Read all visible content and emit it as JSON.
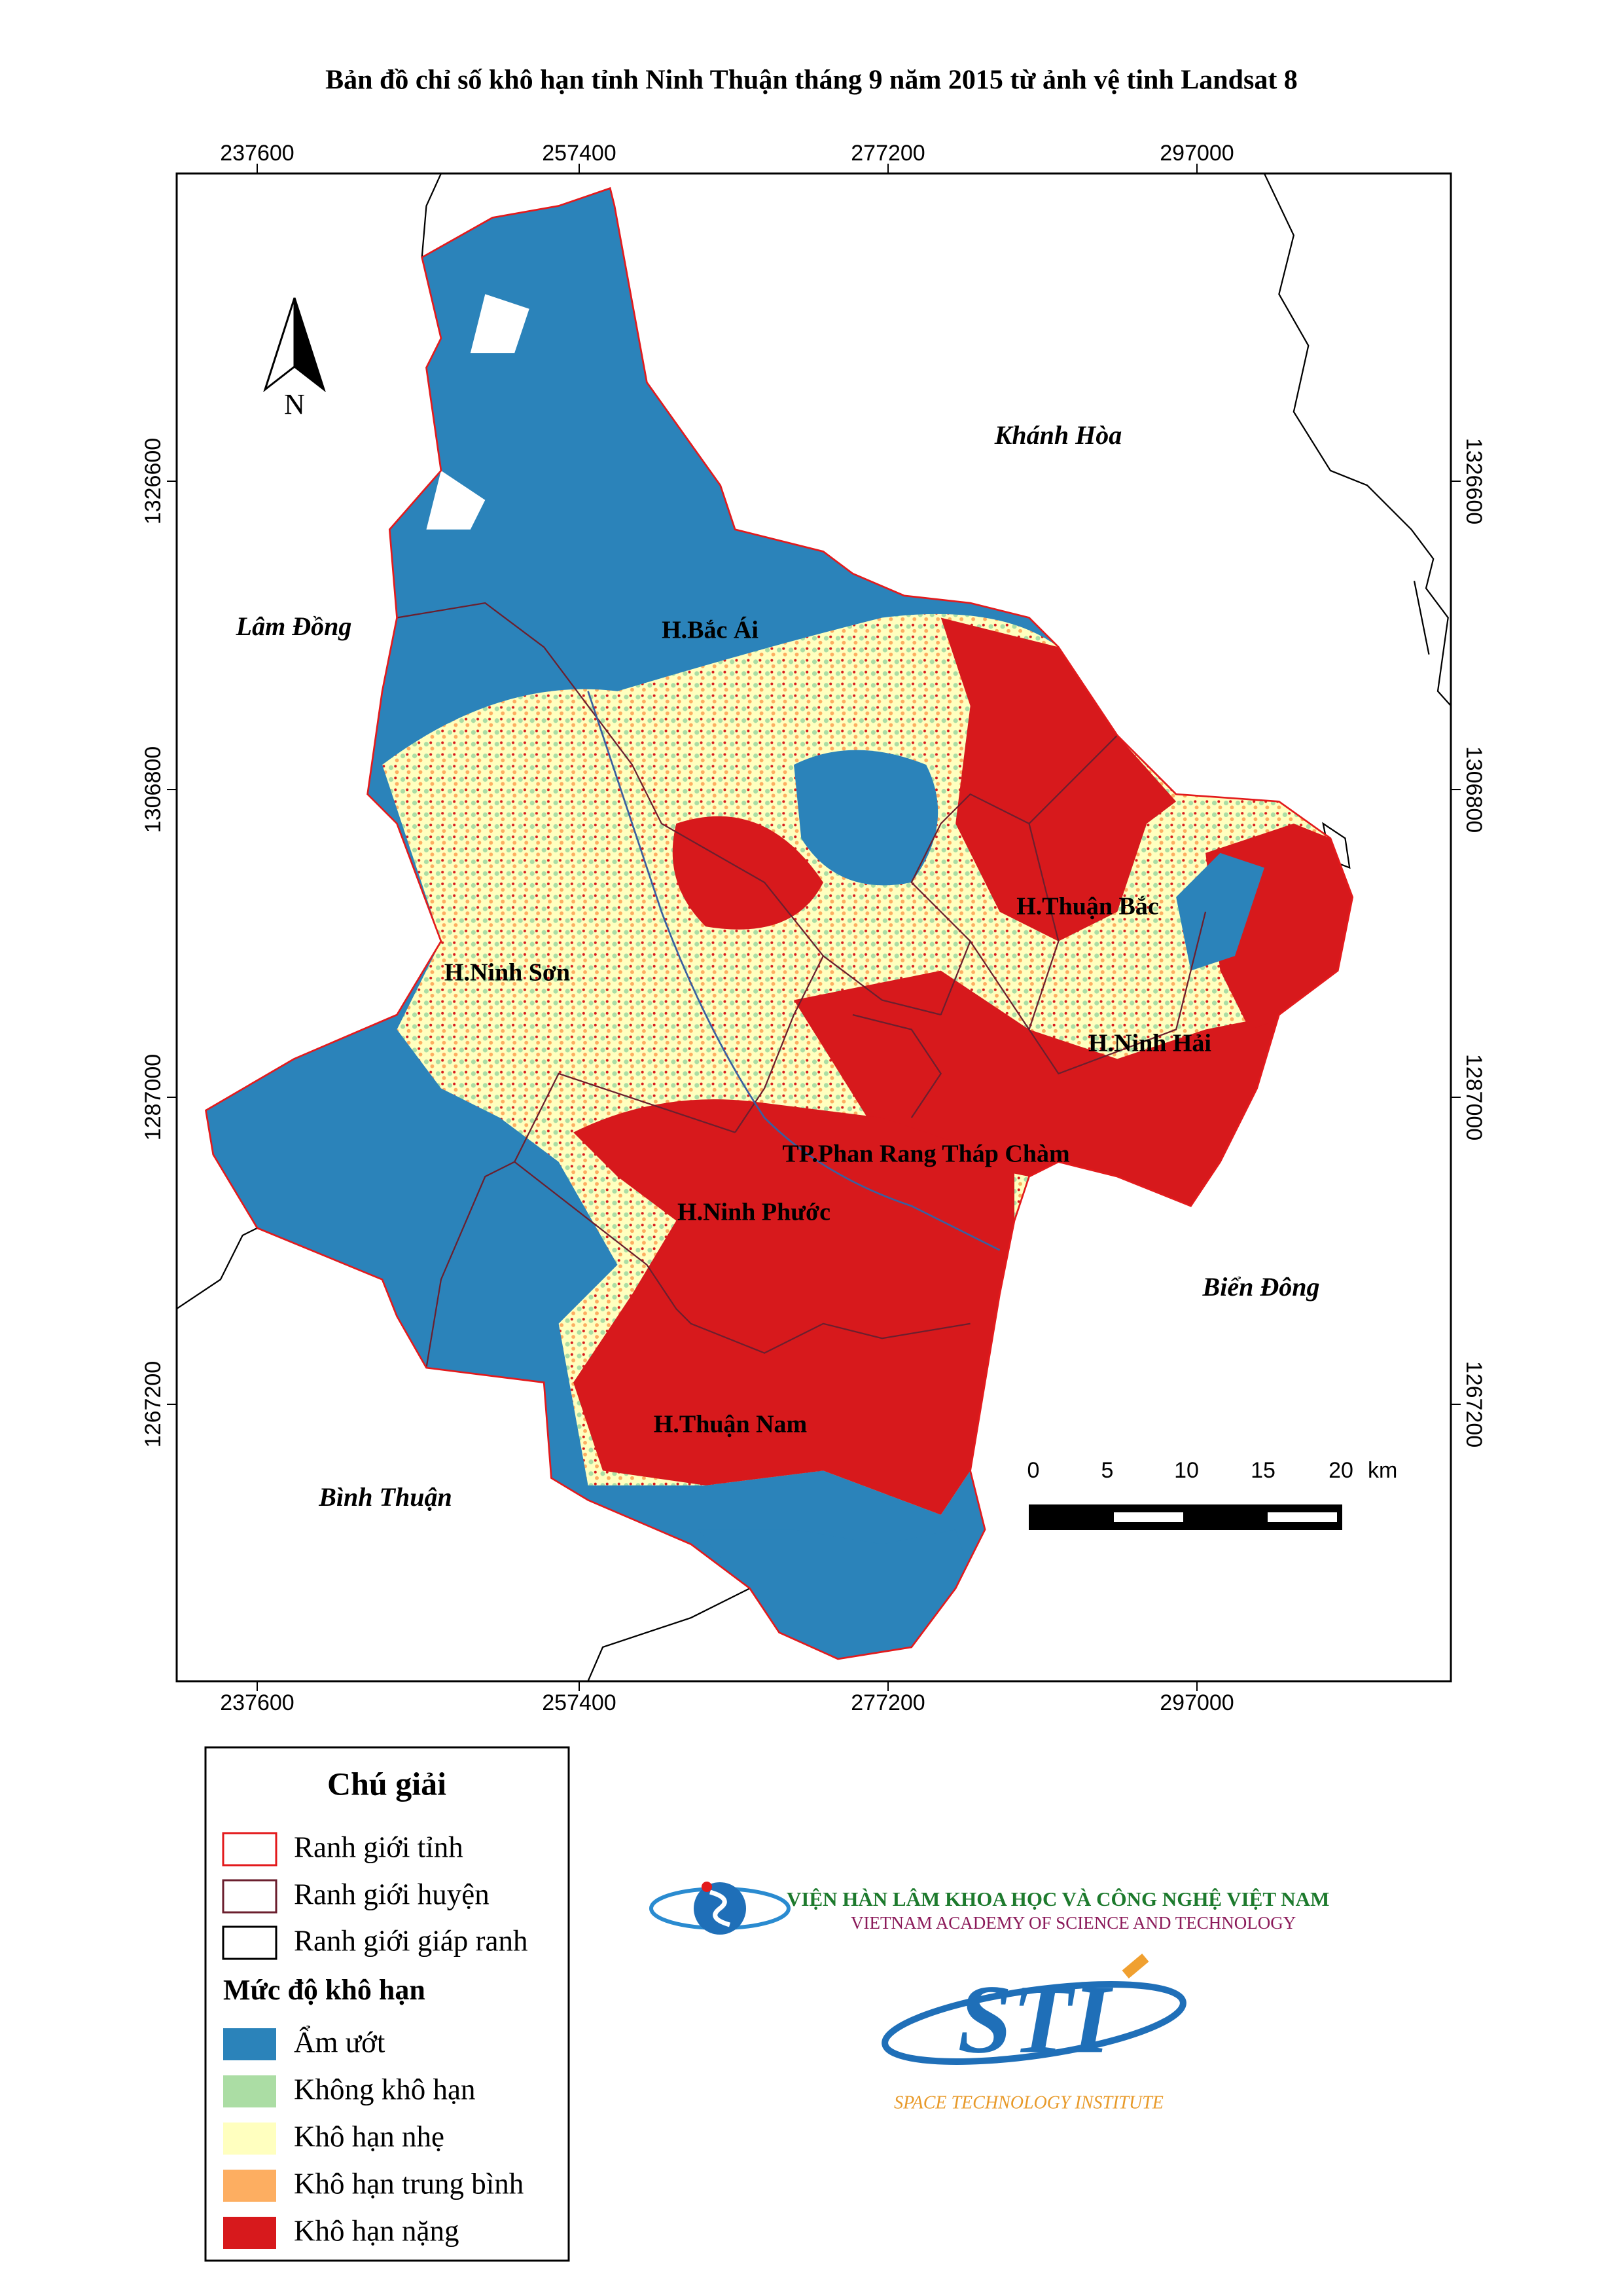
{
  "title": "Bản đồ chỉ số khô hạn tỉnh Ninh Thuận tháng 9 năm 2015 từ ảnh vệ tinh Landsat 8",
  "grid": {
    "x_ticks": [
      237600,
      257400,
      277200,
      297000
    ],
    "y_ticks": [
      1326600,
      1306800,
      1287000,
      1267200
    ]
  },
  "north_arrow": "N",
  "places": {
    "neighbors": [
      "Khánh Hòa",
      "Lâm Đồng",
      "Biển Đông",
      "Bình Thuận"
    ],
    "districts": [
      "H.Bắc Ái",
      "H.Ninh Sơn",
      "H.Thuận Bắc",
      "H.Ninh Hải",
      "TP.Phan Rang Tháp Chàm",
      "H.Ninh Phước",
      "H.Thuận Nam"
    ]
  },
  "scale_bar": {
    "ticks": [
      0,
      5,
      10,
      15,
      20
    ],
    "unit": "km"
  },
  "legend": {
    "title": "Chú giải",
    "boundaries": [
      {
        "label": "Ranh giới tỉnh",
        "color": "#e31a1c"
      },
      {
        "label": "Ranh giới huyện",
        "color": "#6b1f2e"
      },
      {
        "label": "Ranh giới giáp ranh",
        "color": "#000000"
      }
    ],
    "drought_title": "Mức độ khô hạn",
    "classes": [
      {
        "label": "Ẩm ướt",
        "color": "#2b83ba"
      },
      {
        "label": "Không khô hạn",
        "color": "#abdda4"
      },
      {
        "label": "Khô hạn nhẹ",
        "color": "#ffffbf"
      },
      {
        "label": "Khô hạn trung bình",
        "color": "#fdae61"
      },
      {
        "label": "Khô hạn nặng",
        "color": "#d7191c"
      }
    ]
  },
  "logos": {
    "vast_vi": "VIỆN HÀN LÂM KHOA HỌC VÀ CÔNG NGHỆ VIỆT NAM",
    "vast_en": "VIETNAM ACADEMY OF SCIENCE AND TECHNOLOGY",
    "sti": "STI",
    "sti_en": "SPACE TECHNOLOGY INSTITUTE"
  }
}
